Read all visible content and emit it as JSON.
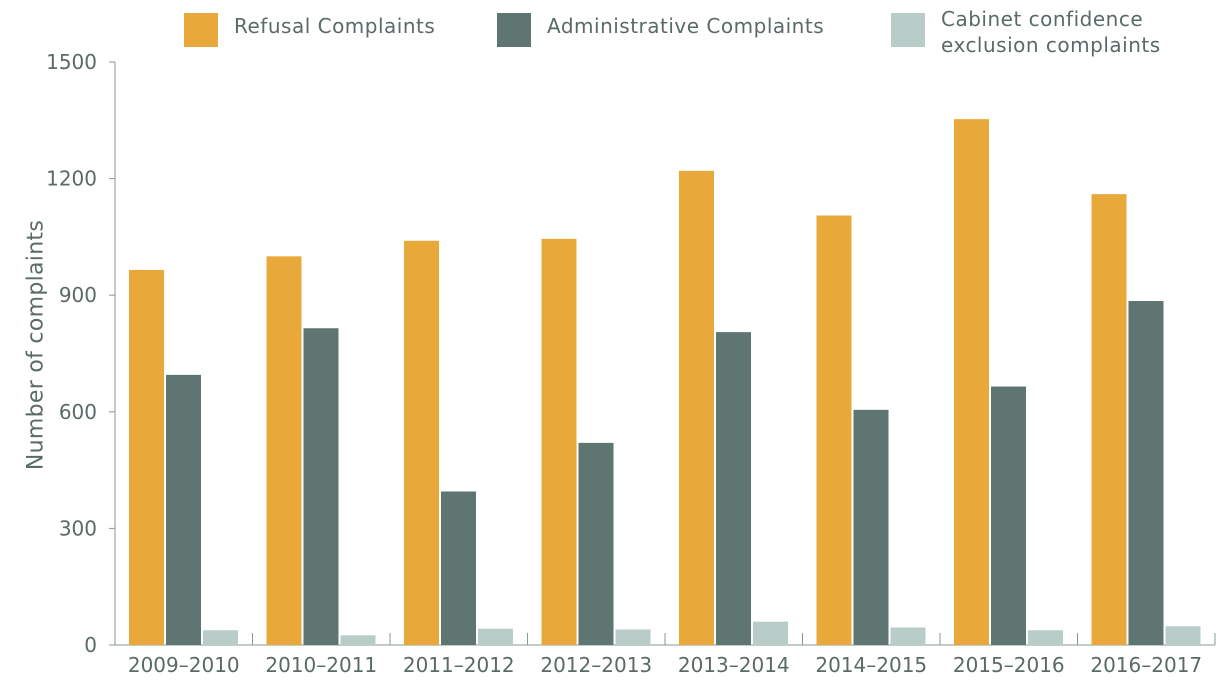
{
  "chart_data": {
    "type": "bar",
    "ylabel": "Number of complaints",
    "xlabel": "",
    "ylim": [
      0,
      1500
    ],
    "yticks": [
      0,
      300,
      600,
      900,
      1200,
      1500
    ],
    "categories": [
      "2009–2010",
      "2010–2011",
      "2011–2012",
      "2012–2013",
      "2013–2014",
      "2014–2015",
      "2015–2016",
      "2016–2017"
    ],
    "series": [
      {
        "name": "Refusal Complaints",
        "color": "#E9A83A",
        "values": [
          965,
          1000,
          1040,
          1045,
          1220,
          1105,
          1353,
          1160
        ]
      },
      {
        "name": "Administrative Complaints",
        "color": "#5F7572",
        "values": [
          695,
          815,
          395,
          520,
          805,
          605,
          665,
          885
        ]
      },
      {
        "name": "Cabinet confidence\nexclusion complaints",
        "color": "#B8CCC8",
        "values": [
          38,
          25,
          42,
          40,
          60,
          45,
          38,
          48
        ]
      }
    ],
    "grid": false,
    "legend_position": "top"
  }
}
